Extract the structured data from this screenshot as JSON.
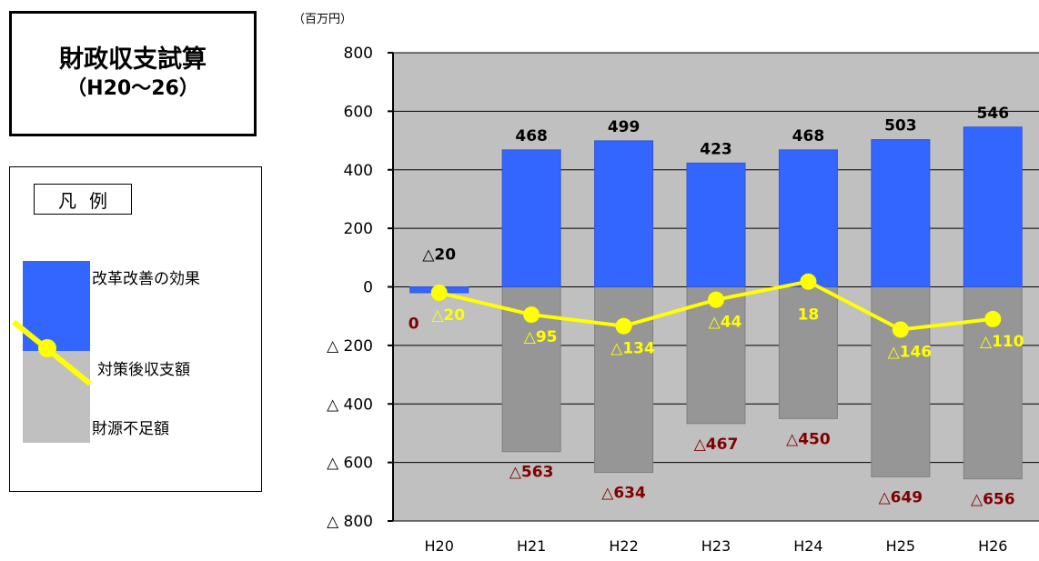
{
  "title_box": {
    "line1": "財政収支試算",
    "line2": "（H20～26）"
  },
  "legend": {
    "title": "凡例",
    "items": [
      {
        "label": "改革改善の効果",
        "color": "#3366ff"
      },
      {
        "label": "対策後収支額",
        "color": "#ffff00"
      },
      {
        "label": "財源不足額",
        "color": "#c0c0c0"
      }
    ]
  },
  "chart_data": {
    "type": "bar",
    "unit_label": "（百万円）",
    "categories": [
      "H20",
      "H21",
      "H22",
      "H23",
      "H24",
      "H25",
      "H26"
    ],
    "ylim": [
      -800,
      800
    ],
    "yticks": [
      800,
      600,
      400,
      200,
      0,
      -200,
      -400,
      -600,
      -800
    ],
    "ytick_labels": [
      "800",
      "600",
      "400",
      "200",
      "0",
      "△ 200",
      "△ 400",
      "△ 600",
      "△ 800"
    ],
    "series": [
      {
        "name": "改革改善の効果",
        "values": [
          -20,
          468,
          499,
          423,
          468,
          503,
          546
        ],
        "labels": [
          "△20",
          "468",
          "499",
          "423",
          "468",
          "503",
          "546"
        ],
        "color": "#3366ff"
      },
      {
        "name": "財源不足額",
        "values": [
          0,
          -563,
          -634,
          -467,
          -450,
          -649,
          -656
        ],
        "labels": [
          "0",
          "△563",
          "△634",
          "△467",
          "△450",
          "△649",
          "△656"
        ],
        "color": "#969696"
      },
      {
        "name": "対策後収支額",
        "values": [
          -20,
          -95,
          -134,
          -44,
          18,
          -146,
          -110
        ],
        "labels": [
          "△20",
          "△95",
          "△134",
          "△44",
          "18",
          "△146",
          "△110"
        ],
        "color": "#ffff00"
      }
    ],
    "grid": true,
    "plot_background": "#c0c0c0",
    "shortfall_label_color": "#800000",
    "balance_label_color": "#ffff00"
  }
}
